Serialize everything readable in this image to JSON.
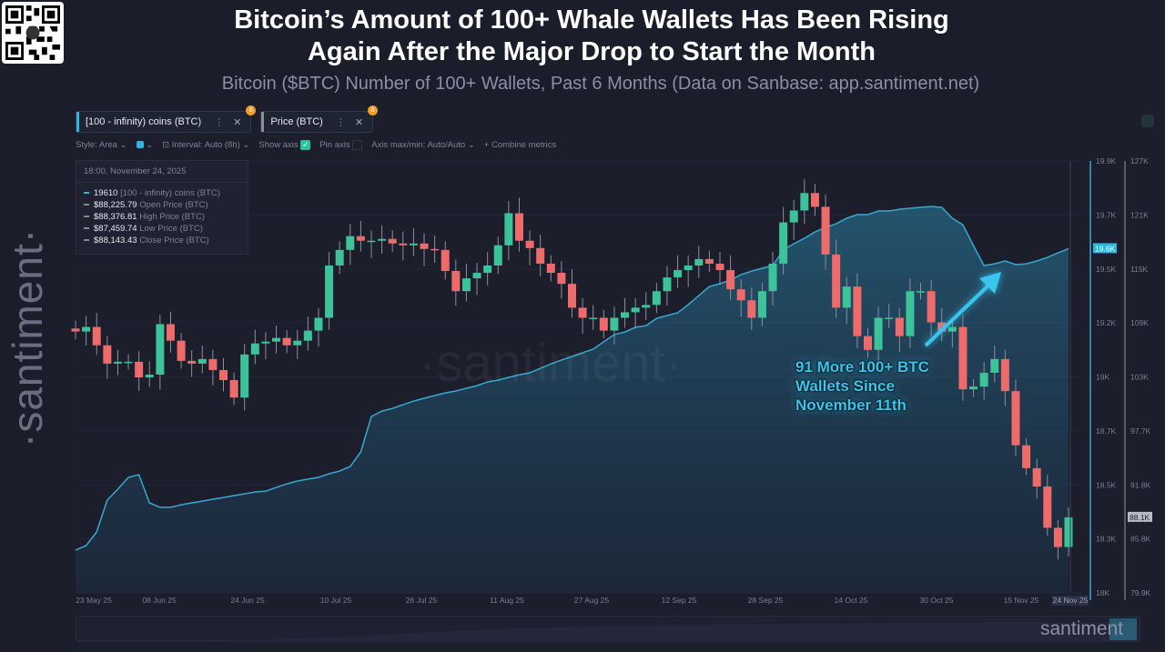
{
  "header": {
    "title_line1": "Bitcoin’s Amount of 100+ Whale Wallets Has Been Rising",
    "title_line2": "Again After the Major Drop to Start the Month",
    "subtitle": "Bitcoin ($BTC) Number of 100+ Wallets, Past 6 Months (Data on Sanbase: app.santiment.net)",
    "logo": "santiment",
    "watermark": "·santiment·"
  },
  "tabs": [
    {
      "label": "[100 - infinity) coins (BTC)",
      "color": "#2bb8e0",
      "badge": "8"
    },
    {
      "label": "Price (BTC)",
      "color": "#8a8d99",
      "badge": "8"
    }
  ],
  "toolbar": {
    "style": "Style: Area",
    "interval": "Interval: Auto (8h)",
    "show_axis": "Show axis",
    "pin_axis": "Pin axis",
    "axis_minmax": "Axis max/min: Auto/Auto",
    "combine": "+ Combine metrics"
  },
  "tooltip": {
    "date": "18:00, November 24, 2025",
    "rows": [
      {
        "value": "19610",
        "label": "[100 - infinity) coins (BTC)"
      },
      {
        "value": "$88,225.79",
        "label": "Open Price (BTC)"
      },
      {
        "value": "$88,376.81",
        "label": "High Price (BTC)"
      },
      {
        "value": "$87,459.74",
        "label": "Low Price (BTC)"
      },
      {
        "value": "$88,143.43",
        "label": "Close Price (BTC)"
      }
    ]
  },
  "annotation": {
    "line1": "91 More 100+ BTC",
    "line2": "Wallets Since",
    "line3": "November 11th"
  },
  "chart_data": {
    "type": "area+candlestick",
    "x_tick_labels": [
      "23 May 25",
      "08 Jun 25",
      "24 Jun 25",
      "10 Jul 25",
      "26 Jul 25",
      "11 Aug 25",
      "27 Aug 25",
      "12 Sep 25",
      "28 Sep 25",
      "14 Oct 25",
      "30 Oct 25",
      "15 Nov 25"
    ],
    "x_current_label": "24 Nov 25",
    "wallet_axis": {
      "ticks": [
        "19.9K",
        "19.7K",
        "19.5K",
        "19.2K",
        "19K",
        "18.7K",
        "18.5K",
        "18.3K",
        "18K"
      ],
      "ylim": [
        18000,
        20020
      ],
      "current": "19.6K"
    },
    "price_axis": {
      "ticks": [
        "127K",
        "121K",
        "115K",
        "109K",
        "103K",
        "97.7K",
        "91.8K",
        "85.8K",
        "79.9K"
      ],
      "ylim": [
        79900,
        127000
      ],
      "current": "88.1K"
    },
    "colors": {
      "area": "#38a8d0",
      "up": "#3cc39a",
      "down": "#ee6b6b"
    },
    "dates": [
      "2025-05-20",
      "2025-05-22",
      "2025-05-24",
      "2025-05-26",
      "2025-05-28",
      "2025-05-30",
      "2025-06-01",
      "2025-06-03",
      "2025-06-05",
      "2025-06-07",
      "2025-06-09",
      "2025-06-11",
      "2025-06-13",
      "2025-06-15",
      "2025-06-17",
      "2025-06-19",
      "2025-06-21",
      "2025-06-23",
      "2025-06-25",
      "2025-06-27",
      "2025-06-29",
      "2025-07-01",
      "2025-07-03",
      "2025-07-05",
      "2025-07-07",
      "2025-07-09",
      "2025-07-11",
      "2025-07-13",
      "2025-07-15",
      "2025-07-17",
      "2025-07-19",
      "2025-07-21",
      "2025-07-23",
      "2025-07-25",
      "2025-07-27",
      "2025-07-29",
      "2025-07-31",
      "2025-08-02",
      "2025-08-04",
      "2025-08-06",
      "2025-08-08",
      "2025-08-10",
      "2025-08-12",
      "2025-08-14",
      "2025-08-16",
      "2025-08-18",
      "2025-08-20",
      "2025-08-22",
      "2025-08-24",
      "2025-08-26",
      "2025-08-28",
      "2025-08-30",
      "2025-09-01",
      "2025-09-03",
      "2025-09-05",
      "2025-09-07",
      "2025-09-09",
      "2025-09-11",
      "2025-09-13",
      "2025-09-15",
      "2025-09-17",
      "2025-09-19",
      "2025-09-21",
      "2025-09-23",
      "2025-09-25",
      "2025-09-27",
      "2025-09-29",
      "2025-10-01",
      "2025-10-03",
      "2025-10-05",
      "2025-10-07",
      "2025-10-09",
      "2025-10-11",
      "2025-10-13",
      "2025-10-15",
      "2025-10-17",
      "2025-10-19",
      "2025-10-21",
      "2025-10-23",
      "2025-10-25",
      "2025-10-27",
      "2025-10-29",
      "2025-10-31",
      "2025-11-02",
      "2025-11-04",
      "2025-11-06",
      "2025-11-08",
      "2025-11-10",
      "2025-11-12",
      "2025-11-14",
      "2025-11-16",
      "2025-11-18",
      "2025-11-20",
      "2025-11-22",
      "2025-11-24"
    ],
    "series": [
      {
        "name": "[100 - infinity) coins (BTC)",
        "type": "area",
        "values": [
          18200,
          18221,
          18285,
          18434,
          18485,
          18540,
          18553,
          18421,
          18400,
          18400,
          18412,
          18421,
          18429,
          18438,
          18446,
          18455,
          18463,
          18472,
          18476,
          18493,
          18510,
          18523,
          18532,
          18540,
          18557,
          18570,
          18591,
          18659,
          18825,
          18850,
          18863,
          18880,
          18897,
          18910,
          18923,
          18935,
          18944,
          18957,
          18969,
          18986,
          18995,
          19008,
          19020,
          19029,
          19050,
          19071,
          19089,
          19106,
          19123,
          19140,
          19174,
          19208,
          19220,
          19242,
          19250,
          19284,
          19297,
          19310,
          19348,
          19390,
          19433,
          19446,
          19463,
          19488,
          19505,
          19518,
          19531,
          19603,
          19633,
          19658,
          19688,
          19709,
          19726,
          19752,
          19769,
          19769,
          19786,
          19786,
          19794,
          19799,
          19803,
          19807,
          19803,
          19752,
          19722,
          19624,
          19531,
          19539,
          19552,
          19535,
          19539,
          19552,
          19569,
          19590,
          19610
        ]
      },
      {
        "name": "Price (BTC)",
        "type": "candlestick",
        "close": [
          108400,
          108900,
          106900,
          104900,
          105100,
          105100,
          103400,
          103700,
          109200,
          107400,
          105200,
          104900,
          105400,
          104200,
          103100,
          101200,
          105900,
          107100,
          107300,
          107700,
          106900,
          107400,
          108500,
          109900,
          115600,
          117300,
          118800,
          118300,
          118300,
          118500,
          118000,
          117800,
          118000,
          117400,
          117300,
          115000,
          112800,
          114200,
          114800,
          115600,
          117800,
          121300,
          118300,
          117500,
          115800,
          114800,
          113600,
          111000,
          109900,
          109900,
          108500,
          109900,
          110500,
          111000,
          111300,
          112800,
          114300,
          115100,
          115600,
          116300,
          115800,
          115100,
          113000,
          111800,
          109900,
          112800,
          115800,
          120300,
          121600,
          123500,
          122000,
          116800,
          111000,
          113300,
          107900,
          106400,
          109900,
          109900,
          107900,
          112800,
          112800,
          109400,
          108400,
          108900,
          102100,
          102400,
          103900,
          105400,
          101900,
          96000,
          93500,
          91500,
          87000,
          84900,
          88143
        ]
      }
    ]
  }
}
